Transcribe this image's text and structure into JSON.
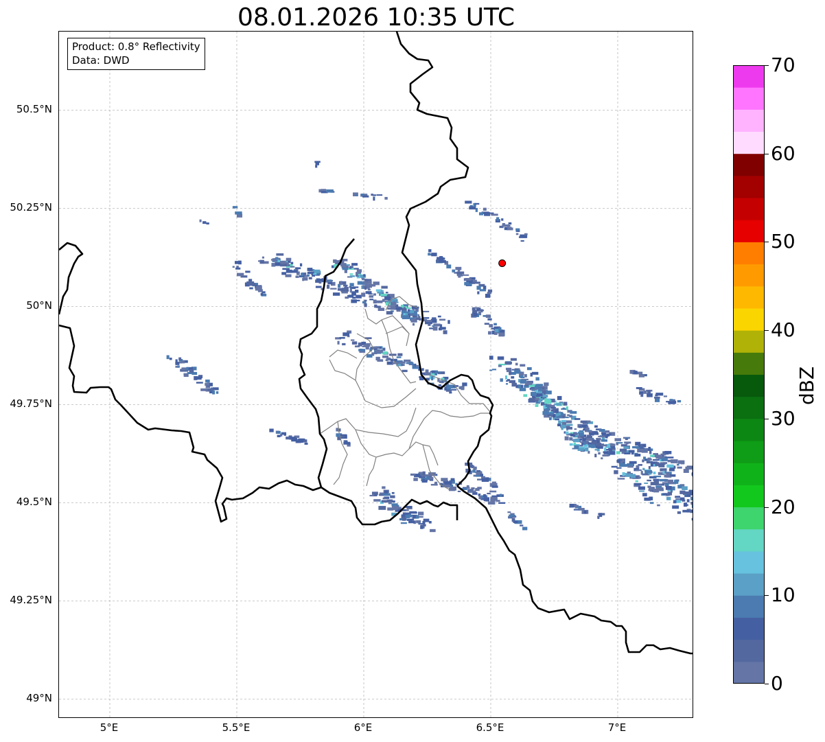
{
  "title": "08.01.2026 10:35 UTC",
  "info": {
    "product": "Product: 0.8° Reflectivity",
    "data": "Data: DWD"
  },
  "map": {
    "extent": {
      "lon_min": 4.8,
      "lon_max": 7.3,
      "lat_min": 48.95,
      "lat_max": 50.7
    },
    "lat_ticks": [
      {
        "value": 50.5,
        "label": "50.5°N"
      },
      {
        "value": 50.25,
        "label": "50.25°N"
      },
      {
        "value": 50.0,
        "label": "50°N"
      },
      {
        "value": 49.75,
        "label": "49.75°N"
      },
      {
        "value": 49.5,
        "label": "49.5°N"
      },
      {
        "value": 49.25,
        "label": "49.25°N"
      },
      {
        "value": 49.0,
        "label": "49°N"
      }
    ],
    "lon_ticks": [
      {
        "value": 5.0,
        "label": "5°E"
      },
      {
        "value": 5.5,
        "label": "5.5°E"
      },
      {
        "value": 6.0,
        "label": "6°E"
      },
      {
        "value": 6.5,
        "label": "6.5°E"
      },
      {
        "value": 7.0,
        "label": "7°E"
      }
    ],
    "gridlines": true,
    "marker": {
      "lon": 6.545,
      "lat": 50.11,
      "color": "#ff0000"
    },
    "border_color": "#000000",
    "district_color": "#808080"
  },
  "colorbar": {
    "label": "dBZ",
    "min": 0,
    "max": 70,
    "tick_labels": [
      "0",
      "10",
      "20",
      "30",
      "40",
      "50",
      "60",
      "70"
    ],
    "colors": [
      "#6475a6",
      "#5468a0",
      "#4560a2",
      "#4b7bb1",
      "#5ba0c6",
      "#66c2de",
      "#63d6c4",
      "#3ed46e",
      "#13c81d",
      "#10b21a",
      "#0f9c16",
      "#0d8713",
      "#0a7010",
      "#07590c",
      "#467a0a",
      "#b0b207",
      "#fbd500",
      "#ffb800",
      "#ff9b00",
      "#ff7e00",
      "#e60000",
      "#c50000",
      "#a30000",
      "#800000",
      "#ffdcff",
      "#ffb3ff",
      "#ff75ff",
      "#ee3aee"
    ]
  }
}
